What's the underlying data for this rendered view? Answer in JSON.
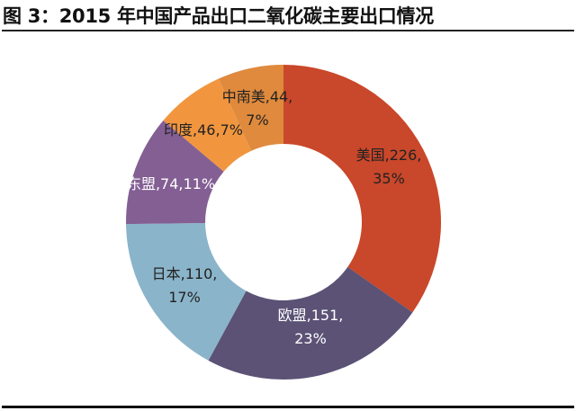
{
  "title": "图 3：2015 年中国产品出口二氧化碳主要出口情况",
  "chart_data": {
    "type": "pie",
    "style": "donut",
    "title": "图 3：2015 年中国产品出口二氧化碳主要出口情况",
    "categories": [
      "美国",
      "欧盟",
      "日本",
      "东盟",
      "印度",
      "中南美"
    ],
    "values": [
      226,
      151,
      110,
      74,
      46,
      44
    ],
    "percents": [
      35,
      23,
      17,
      11,
      7,
      7
    ],
    "colors": [
      "#C9472A",
      "#5B5276",
      "#8AB4C9",
      "#835F94",
      "#F1963F",
      "#DF8A3D"
    ],
    "labels": [
      [
        "美国,226,",
        "35%"
      ],
      [
        "欧盟,151,",
        "23%"
      ],
      [
        "日本,110,",
        "17%"
      ],
      [
        "东盟,74,11%"
      ],
      [
        "印度,46,7%"
      ],
      [
        "中南美,44,",
        "7%"
      ]
    ],
    "label_colors": [
      "#222222",
      "#ffffff",
      "#222222",
      "#ffffff",
      "#222222",
      "#222222"
    ],
    "start": "top",
    "direction": "clockwise"
  }
}
